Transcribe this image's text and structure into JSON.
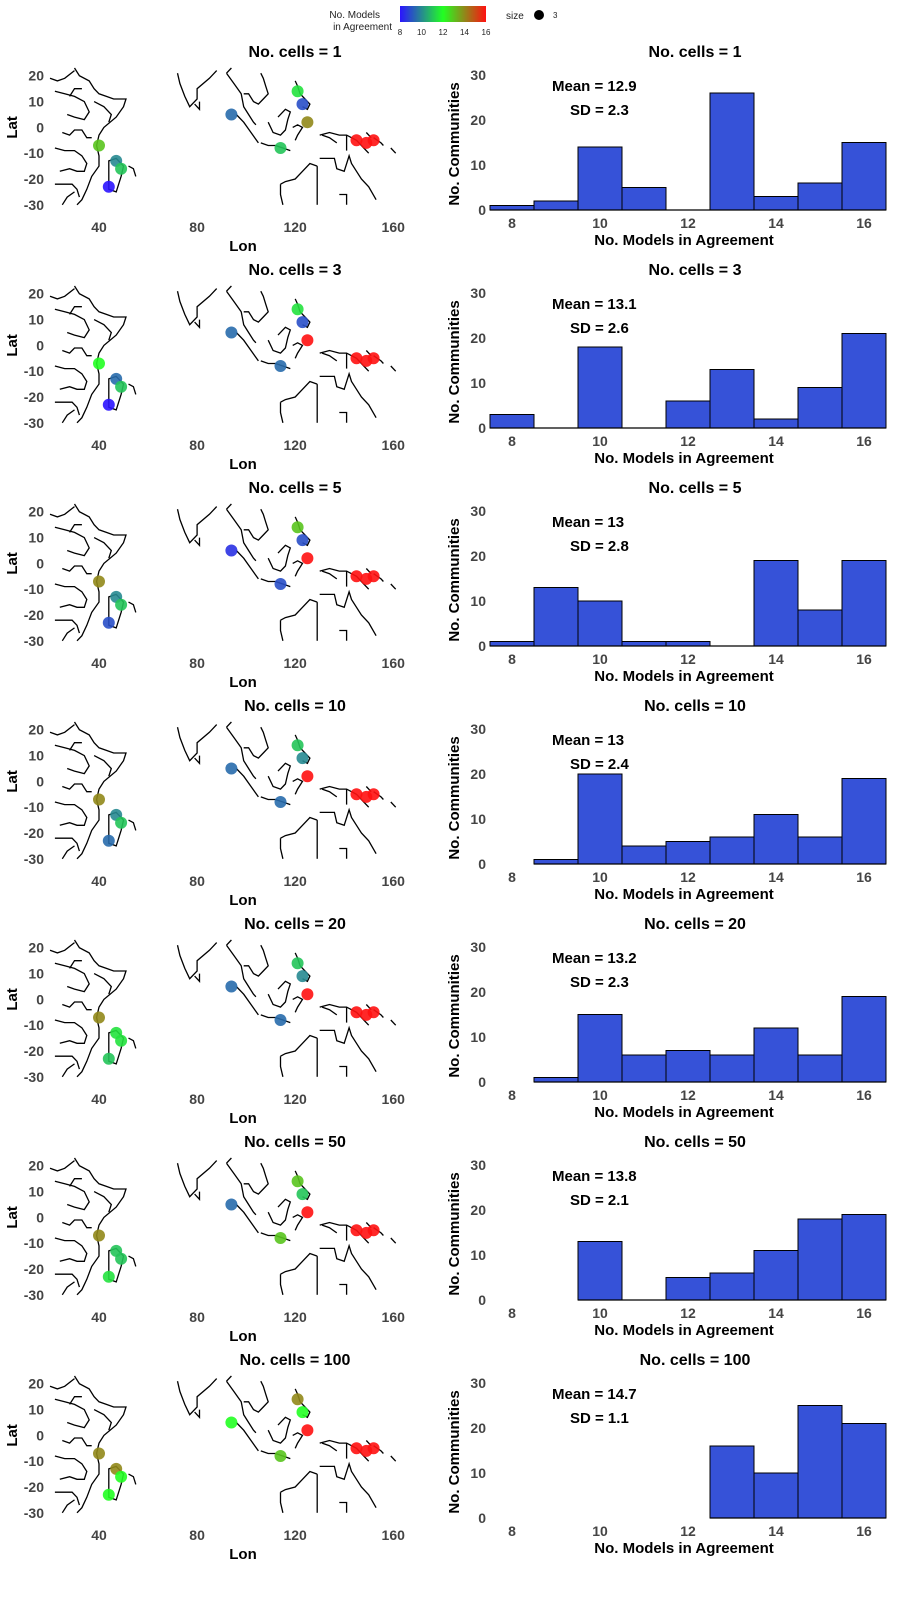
{
  "legend": {
    "color_title_line1": "No. Models",
    "color_title_line2": "in Agreement",
    "color_ticks": [
      "8",
      "10",
      "12",
      "14",
      "16"
    ],
    "size_title": "size",
    "size_value": "3",
    "color_scale": [
      "#2b14ff",
      "#22ff22",
      "#ff1111"
    ]
  },
  "chart_data": [
    {
      "type": "map",
      "title": "No. cells = 1",
      "xlabel": "Lon",
      "ylabel": "Lat",
      "x_ticks": [
        "40",
        "80",
        "120",
        "160"
      ],
      "y_ticks": [
        "20",
        "10",
        "0",
        "-10",
        "-20",
        "-30"
      ],
      "points": [
        {
          "lon": 40,
          "lat": -7,
          "value": 13
        },
        {
          "lon": 44,
          "lat": -23,
          "value": 8
        },
        {
          "lon": 47,
          "lat": -13,
          "value": 10
        },
        {
          "lon": 49,
          "lat": -16,
          "value": 11
        },
        {
          "lon": 94,
          "lat": 5,
          "value": 9.5
        },
        {
          "lon": 114,
          "lat": -8,
          "value": 11
        },
        {
          "lon": 121,
          "lat": 14,
          "value": 11.5
        },
        {
          "lon": 123,
          "lat": 9,
          "value": 9
        },
        {
          "lon": 125,
          "lat": 2,
          "value": 14
        },
        {
          "lon": 145,
          "lat": -5,
          "value": 16
        },
        {
          "lon": 149,
          "lat": -6,
          "value": 16
        },
        {
          "lon": 152,
          "lat": -5,
          "value": 16
        }
      ]
    },
    {
      "type": "bar",
      "title": "No. cells = 1",
      "xlabel": "No. Models in Agreement",
      "ylabel": "No. Communities",
      "categories": [
        8,
        9,
        10,
        11,
        12,
        13,
        14,
        15,
        16
      ],
      "values": [
        1,
        2,
        14,
        5,
        0,
        26,
        3,
        6,
        15
      ],
      "ylim": [
        0,
        30
      ],
      "x_ticks": [
        "8",
        "10",
        "12",
        "14",
        "16"
      ],
      "y_ticks": [
        "0",
        "10",
        "20",
        "30"
      ],
      "mean_label": "Mean =  12.9",
      "sd_label": "SD =  2.3",
      "color": "#3652d8"
    },
    {
      "type": "map",
      "title": "No. cells = 3",
      "xlabel": "Lon",
      "ylabel": "Lat",
      "x_ticks": [
        "40",
        "80",
        "120",
        "160"
      ],
      "y_ticks": [
        "20",
        "10",
        "0",
        "-10",
        "-20",
        "-30"
      ],
      "points": [
        {
          "lon": 40,
          "lat": -7,
          "value": 12
        },
        {
          "lon": 44,
          "lat": -23,
          "value": 8
        },
        {
          "lon": 47,
          "lat": -13,
          "value": 9.5
        },
        {
          "lon": 49,
          "lat": -16,
          "value": 11
        },
        {
          "lon": 94,
          "lat": 5,
          "value": 9.5
        },
        {
          "lon": 114,
          "lat": -8,
          "value": 9.5
        },
        {
          "lon": 121,
          "lat": 14,
          "value": 11.5
        },
        {
          "lon": 123,
          "lat": 9,
          "value": 9
        },
        {
          "lon": 125,
          "lat": 2,
          "value": 16
        },
        {
          "lon": 145,
          "lat": -5,
          "value": 16
        },
        {
          "lon": 149,
          "lat": -6,
          "value": 16
        },
        {
          "lon": 152,
          "lat": -5,
          "value": 16
        }
      ]
    },
    {
      "type": "bar",
      "title": "No. cells = 3",
      "xlabel": "No. Models in Agreement",
      "ylabel": "No. Communities",
      "categories": [
        8,
        9,
        10,
        11,
        12,
        13,
        14,
        15,
        16
      ],
      "values": [
        3,
        0,
        18,
        0,
        6,
        13,
        2,
        9,
        21
      ],
      "ylim": [
        0,
        30
      ],
      "x_ticks": [
        "8",
        "10",
        "12",
        "14",
        "16"
      ],
      "y_ticks": [
        "0",
        "10",
        "20",
        "30"
      ],
      "mean_label": "Mean =  13.1",
      "sd_label": "SD =  2.6",
      "color": "#3652d8"
    },
    {
      "type": "map",
      "title": "No. cells = 5",
      "xlabel": "Lon",
      "ylabel": "Lat",
      "x_ticks": [
        "40",
        "80",
        "120",
        "160"
      ],
      "y_ticks": [
        "20",
        "10",
        "0",
        "-10",
        "-20",
        "-30"
      ],
      "points": [
        {
          "lon": 40,
          "lat": -7,
          "value": 14
        },
        {
          "lon": 44,
          "lat": -23,
          "value": 9
        },
        {
          "lon": 47,
          "lat": -13,
          "value": 10
        },
        {
          "lon": 49,
          "lat": -16,
          "value": 11
        },
        {
          "lon": 94,
          "lat": 5,
          "value": 8.5
        },
        {
          "lon": 114,
          "lat": -8,
          "value": 9
        },
        {
          "lon": 121,
          "lat": 14,
          "value": 13
        },
        {
          "lon": 123,
          "lat": 9,
          "value": 9
        },
        {
          "lon": 125,
          "lat": 2,
          "value": 16
        },
        {
          "lon": 145,
          "lat": -5,
          "value": 16
        },
        {
          "lon": 149,
          "lat": -6,
          "value": 16
        },
        {
          "lon": 152,
          "lat": -5,
          "value": 16
        }
      ]
    },
    {
      "type": "bar",
      "title": "No. cells = 5",
      "xlabel": "No. Models in Agreement",
      "ylabel": "No. Communities",
      "categories": [
        8,
        9,
        10,
        11,
        12,
        13,
        14,
        15,
        16
      ],
      "values": [
        1,
        13,
        10,
        1,
        1,
        0,
        19,
        8,
        19
      ],
      "ylim": [
        0,
        30
      ],
      "x_ticks": [
        "8",
        "10",
        "12",
        "14",
        "16"
      ],
      "y_ticks": [
        "0",
        "10",
        "20",
        "30"
      ],
      "mean_label": "Mean =  13",
      "sd_label": "SD =  2.8",
      "color": "#3652d8"
    },
    {
      "type": "map",
      "title": "No. cells = 10",
      "xlabel": "Lon",
      "ylabel": "Lat",
      "x_ticks": [
        "40",
        "80",
        "120",
        "160"
      ],
      "y_ticks": [
        "20",
        "10",
        "0",
        "-10",
        "-20",
        "-30"
      ],
      "points": [
        {
          "lon": 40,
          "lat": -7,
          "value": 14
        },
        {
          "lon": 44,
          "lat": -23,
          "value": 9.5
        },
        {
          "lon": 47,
          "lat": -13,
          "value": 10
        },
        {
          "lon": 49,
          "lat": -16,
          "value": 11
        },
        {
          "lon": 94,
          "lat": 5,
          "value": 9.5
        },
        {
          "lon": 114,
          "lat": -8,
          "value": 9.5
        },
        {
          "lon": 121,
          "lat": 14,
          "value": 11
        },
        {
          "lon": 123,
          "lat": 9,
          "value": 10
        },
        {
          "lon": 125,
          "lat": 2,
          "value": 16
        },
        {
          "lon": 145,
          "lat": -5,
          "value": 16
        },
        {
          "lon": 149,
          "lat": -6,
          "value": 16
        },
        {
          "lon": 152,
          "lat": -5,
          "value": 16
        }
      ]
    },
    {
      "type": "bar",
      "title": "No. cells = 10",
      "xlabel": "No. Models in Agreement",
      "ylabel": "No. Communities",
      "categories": [
        8,
        9,
        10,
        11,
        12,
        13,
        14,
        15,
        16
      ],
      "values": [
        0,
        1,
        20,
        4,
        5,
        6,
        11,
        6,
        19
      ],
      "ylim": [
        0,
        30
      ],
      "x_ticks": [
        "8",
        "10",
        "12",
        "14",
        "16"
      ],
      "y_ticks": [
        "0",
        "10",
        "20",
        "30"
      ],
      "mean_label": "Mean =  13",
      "sd_label": "SD =  2.4",
      "color": "#3652d8"
    },
    {
      "type": "map",
      "title": "No. cells = 20",
      "xlabel": "Lon",
      "ylabel": "Lat",
      "x_ticks": [
        "40",
        "80",
        "120",
        "160"
      ],
      "y_ticks": [
        "20",
        "10",
        "0",
        "-10",
        "-20",
        "-30"
      ],
      "points": [
        {
          "lon": 40,
          "lat": -7,
          "value": 14
        },
        {
          "lon": 44,
          "lat": -23,
          "value": 11
        },
        {
          "lon": 47,
          "lat": -13,
          "value": 11.5
        },
        {
          "lon": 49,
          "lat": -16,
          "value": 11.5
        },
        {
          "lon": 94,
          "lat": 5,
          "value": 9.5
        },
        {
          "lon": 114,
          "lat": -8,
          "value": 9.5
        },
        {
          "lon": 121,
          "lat": 14,
          "value": 11
        },
        {
          "lon": 123,
          "lat": 9,
          "value": 10
        },
        {
          "lon": 125,
          "lat": 2,
          "value": 16
        },
        {
          "lon": 145,
          "lat": -5,
          "value": 16
        },
        {
          "lon": 149,
          "lat": -6,
          "value": 16
        },
        {
          "lon": 152,
          "lat": -5,
          "value": 16
        }
      ]
    },
    {
      "type": "bar",
      "title": "No. cells = 20",
      "xlabel": "No. Models in Agreement",
      "ylabel": "No. Communities",
      "categories": [
        8,
        9,
        10,
        11,
        12,
        13,
        14,
        15,
        16
      ],
      "values": [
        0,
        1,
        15,
        6,
        7,
        6,
        12,
        6,
        19
      ],
      "ylim": [
        0,
        30
      ],
      "x_ticks": [
        "8",
        "10",
        "12",
        "14",
        "16"
      ],
      "y_ticks": [
        "0",
        "10",
        "20",
        "30"
      ],
      "mean_label": "Mean =  13.2",
      "sd_label": "SD =  2.3",
      "color": "#3652d8"
    },
    {
      "type": "map",
      "title": "No. cells = 50",
      "xlabel": "Lon",
      "ylabel": "Lat",
      "x_ticks": [
        "40",
        "80",
        "120",
        "160"
      ],
      "y_ticks": [
        "20",
        "10",
        "0",
        "-10",
        "-20",
        "-30"
      ],
      "points": [
        {
          "lon": 40,
          "lat": -7,
          "value": 14
        },
        {
          "lon": 44,
          "lat": -23,
          "value": 11.5
        },
        {
          "lon": 47,
          "lat": -13,
          "value": 11
        },
        {
          "lon": 49,
          "lat": -16,
          "value": 11
        },
        {
          "lon": 94,
          "lat": 5,
          "value": 9.5
        },
        {
          "lon": 114,
          "lat": -8,
          "value": 13
        },
        {
          "lon": 121,
          "lat": 14,
          "value": 13
        },
        {
          "lon": 123,
          "lat": 9,
          "value": 11
        },
        {
          "lon": 125,
          "lat": 2,
          "value": 16
        },
        {
          "lon": 145,
          "lat": -5,
          "value": 16
        },
        {
          "lon": 149,
          "lat": -6,
          "value": 16
        },
        {
          "lon": 152,
          "lat": -5,
          "value": 16
        }
      ]
    },
    {
      "type": "bar",
      "title": "No. cells = 50",
      "xlabel": "No. Models in Agreement",
      "ylabel": "No. Communities",
      "categories": [
        8,
        9,
        10,
        11,
        12,
        13,
        14,
        15,
        16
      ],
      "values": [
        0,
        0,
        13,
        0,
        5,
        6,
        11,
        18,
        19
      ],
      "ylim": [
        0,
        30
      ],
      "x_ticks": [
        "8",
        "10",
        "12",
        "14",
        "16"
      ],
      "y_ticks": [
        "0",
        "10",
        "20",
        "30"
      ],
      "mean_label": "Mean =  13.8",
      "sd_label": "SD =  2.1",
      "color": "#3652d8"
    },
    {
      "type": "map",
      "title": "No. cells = 100",
      "xlabel": "Lon",
      "ylabel": "Lat",
      "x_ticks": [
        "40",
        "80",
        "120",
        "160"
      ],
      "y_ticks": [
        "20",
        "10",
        "0",
        "-10",
        "-20",
        "-30"
      ],
      "points": [
        {
          "lon": 40,
          "lat": -7,
          "value": 14
        },
        {
          "lon": 44,
          "lat": -23,
          "value": 12
        },
        {
          "lon": 47,
          "lat": -13,
          "value": 14
        },
        {
          "lon": 49,
          "lat": -16,
          "value": 12
        },
        {
          "lon": 94,
          "lat": 5,
          "value": 12
        },
        {
          "lon": 114,
          "lat": -8,
          "value": 13
        },
        {
          "lon": 121,
          "lat": 14,
          "value": 14
        },
        {
          "lon": 123,
          "lat": 9,
          "value": 12
        },
        {
          "lon": 125,
          "lat": 2,
          "value": 16
        },
        {
          "lon": 145,
          "lat": -5,
          "value": 16
        },
        {
          "lon": 149,
          "lat": -6,
          "value": 16
        },
        {
          "lon": 152,
          "lat": -5,
          "value": 16
        }
      ]
    },
    {
      "type": "bar",
      "title": "No. cells = 100",
      "xlabel": "No. Models in Agreement",
      "ylabel": "No. Communities",
      "categories": [
        8,
        9,
        10,
        11,
        12,
        13,
        14,
        15,
        16
      ],
      "values": [
        0,
        0,
        0,
        0,
        0,
        16,
        10,
        25,
        21
      ],
      "ylim": [
        0,
        30
      ],
      "x_ticks": [
        "8",
        "10",
        "12",
        "14",
        "16"
      ],
      "y_ticks": [
        "0",
        "10",
        "20",
        "30"
      ],
      "mean_label": "Mean =  14.7",
      "sd_label": "SD =  1.1",
      "color": "#3652d8"
    }
  ]
}
